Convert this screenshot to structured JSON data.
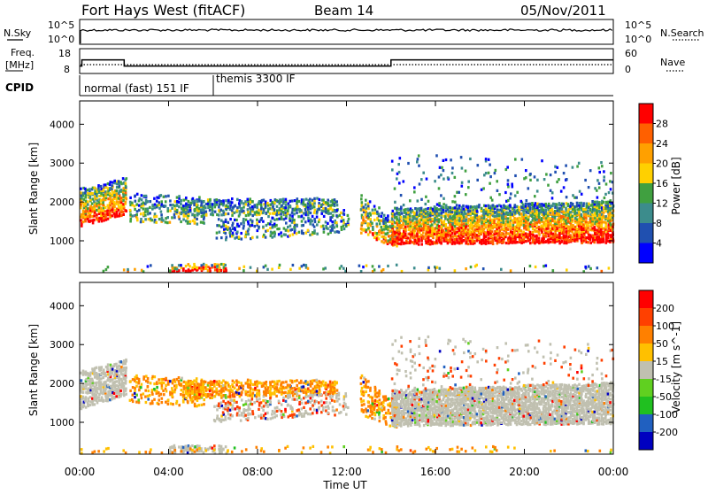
{
  "header": {
    "station": "Fort Hays West (fitACF)",
    "beam": "Beam 14",
    "date": "05/Nov/2011"
  },
  "noise_panel": {
    "left_label": "N.Sky",
    "right_label": "N.Search",
    "left_ticks": [
      "10^5",
      "10^0"
    ],
    "right_ticks": [
      "10^5",
      "10^0"
    ]
  },
  "freq_panel": {
    "left_label_1": "Freq.",
    "left_label_2": "[MHz]",
    "left_ticks": [
      "18",
      "8"
    ],
    "right_label": "Nave",
    "right_ticks": [
      "60",
      "0"
    ]
  },
  "cpid": {
    "label": "CPID",
    "segments": [
      "normal (fast) 151 IF",
      "themis 3300 IF"
    ]
  },
  "colors": {
    "power": [
      "#0000ff",
      "#2050b0",
      "#3c8c8c",
      "#40a040",
      "#ffd000",
      "#ffa000",
      "#ff6000",
      "#ff0000"
    ],
    "velocity": [
      "#0000c0",
      "#2060c0",
      "#20c020",
      "#60d020",
      "#c0c0b0",
      "#ffc000",
      "#ff8000",
      "#ff4000",
      "#ff0000"
    ]
  },
  "chart_data": [
    {
      "type": "line",
      "panel": "noise",
      "x_range_hours": [
        0,
        24
      ],
      "series": [
        {
          "name": "N.Sky",
          "style": "solid"
        },
        {
          "name": "N.Search",
          "style": "dotted"
        }
      ]
    },
    {
      "type": "line",
      "panel": "frequency",
      "x_range_hours": [
        0,
        24
      ],
      "frequency_mhz_steps": [
        [
          0,
          0.1,
          11
        ],
        [
          0.1,
          2.0,
          13.5
        ],
        [
          2.0,
          14.0,
          11
        ],
        [
          14.0,
          24,
          13.5
        ]
      ],
      "ylim_freq": [
        8,
        18
      ],
      "ylim_nave": [
        0,
        60
      ]
    },
    {
      "type": "heatmap",
      "panel": "power",
      "ylabel": "Slant Range [km]",
      "colorbar_label": "Power [dB]",
      "colorbar_ticks": [
        "4",
        "8",
        "12",
        "16",
        "20",
        "24",
        "28"
      ],
      "yticks": [
        "1000",
        "2000",
        "3000",
        "4000"
      ],
      "ylim": [
        180,
        4600
      ]
    },
    {
      "type": "heatmap",
      "panel": "velocity",
      "ylabel": "Slant Range [km]",
      "colorbar_label": "Velocity [m s^-1]",
      "colorbar_ticks": [
        "-200",
        "-100",
        "-50",
        "-15",
        "15",
        "50",
        "100",
        "200"
      ],
      "yticks": [
        "1000",
        "2000",
        "3000",
        "4000"
      ],
      "ylim": [
        180,
        4600
      ]
    }
  ],
  "x_axis": {
    "label": "Time UT",
    "ticks": [
      "00:00",
      "04:00",
      "08:00",
      "12:00",
      "16:00",
      "20:00",
      "00:00"
    ]
  }
}
